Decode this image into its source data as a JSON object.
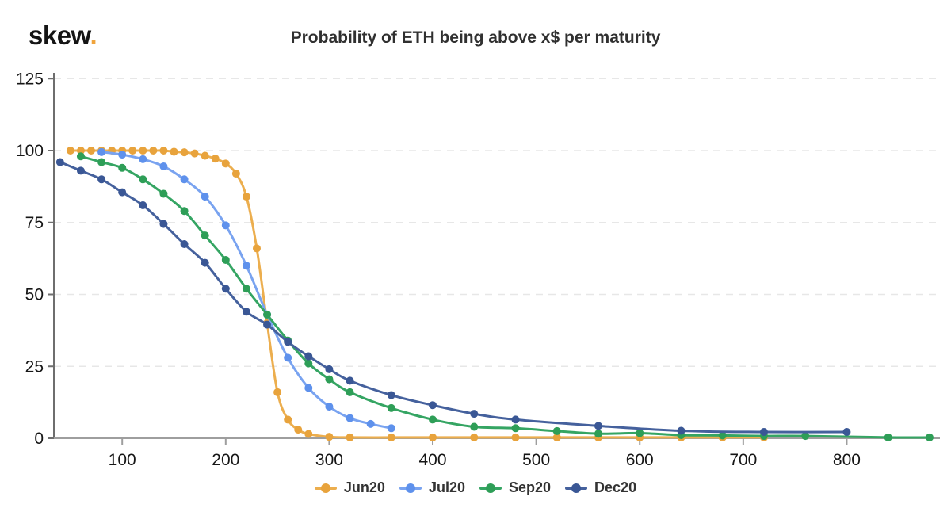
{
  "header": {
    "logo_text": "skew",
    "logo_dot": ".",
    "title": "Probability of ETH being above x$ per maturity"
  },
  "colors": {
    "background": "#ffffff",
    "title_text": "#303030",
    "tick_text": "#161616",
    "grid_line": "#e7e7e7",
    "x_axis_line": "#9e9e9e",
    "y_axis_line": "#6e6e6e",
    "logo_dot_accent": "#F0A43C"
  },
  "chart_data": {
    "type": "line",
    "title": "Probability of ETH being above x$ per maturity",
    "xlabel": "",
    "ylabel": "",
    "grid": "horizontal-dashed",
    "legend_position": "bottom-center",
    "x_axis": {
      "min": 34,
      "max": 890,
      "ticks": [
        100,
        200,
        300,
        400,
        500,
        600,
        700,
        800
      ]
    },
    "y_axis": {
      "min": 0,
      "max": 127,
      "ticks": [
        0,
        25,
        50,
        75,
        100,
        125
      ]
    },
    "series": [
      {
        "name": "Jun20",
        "dot_color": "#E8A33C",
        "line_color": "#ECAE4E",
        "points": [
          [
            50,
            100
          ],
          [
            60,
            100
          ],
          [
            70,
            100
          ],
          [
            80,
            100
          ],
          [
            90,
            100
          ],
          [
            100,
            100
          ],
          [
            110,
            100
          ],
          [
            120,
            100
          ],
          [
            130,
            100
          ],
          [
            140,
            100
          ],
          [
            150,
            99.6
          ],
          [
            160,
            99.4
          ],
          [
            170,
            99
          ],
          [
            180,
            98.2
          ],
          [
            190,
            97.2
          ],
          [
            200,
            95.5
          ],
          [
            210,
            92
          ],
          [
            220,
            84
          ],
          [
            230,
            66
          ],
          [
            240,
            40
          ],
          [
            250,
            16
          ],
          [
            260,
            6.5
          ],
          [
            270,
            3
          ],
          [
            280,
            1.5
          ],
          [
            300,
            0.5
          ],
          [
            320,
            0.3
          ],
          [
            360,
            0.3
          ],
          [
            400,
            0.3
          ],
          [
            440,
            0.3
          ],
          [
            480,
            0.3
          ],
          [
            520,
            0.3
          ],
          [
            560,
            0.3
          ],
          [
            600,
            0.3
          ],
          [
            640,
            0.3
          ],
          [
            680,
            0.3
          ],
          [
            720,
            0.3
          ]
        ]
      },
      {
        "name": "Jul20",
        "dot_color": "#5E91EC",
        "line_color": "#79A3F0",
        "points": [
          [
            80,
            99.5
          ],
          [
            100,
            98.6
          ],
          [
            120,
            97
          ],
          [
            140,
            94.5
          ],
          [
            160,
            90
          ],
          [
            180,
            84
          ],
          [
            200,
            74
          ],
          [
            220,
            60
          ],
          [
            240,
            43
          ],
          [
            260,
            28
          ],
          [
            280,
            17.5
          ],
          [
            300,
            11
          ],
          [
            320,
            7
          ],
          [
            340,
            5
          ],
          [
            360,
            3.5
          ]
        ]
      },
      {
        "name": "Sep20",
        "dot_color": "#2E9E57",
        "line_color": "#35A563",
        "points": [
          [
            60,
            98
          ],
          [
            80,
            96
          ],
          [
            100,
            94
          ],
          [
            120,
            90
          ],
          [
            140,
            85
          ],
          [
            160,
            79
          ],
          [
            180,
            70.5
          ],
          [
            200,
            62
          ],
          [
            220,
            52
          ],
          [
            240,
            43
          ],
          [
            260,
            34
          ],
          [
            280,
            26
          ],
          [
            300,
            20.5
          ],
          [
            320,
            16
          ],
          [
            360,
            10.5
          ],
          [
            400,
            6.5
          ],
          [
            440,
            4
          ],
          [
            480,
            3.5
          ],
          [
            520,
            2.5
          ],
          [
            560,
            1.6
          ],
          [
            600,
            1.8
          ],
          [
            640,
            1.1
          ],
          [
            680,
            1
          ],
          [
            720,
            0.8
          ],
          [
            760,
            0.8
          ],
          [
            840,
            0.3
          ],
          [
            880,
            0.3
          ]
        ]
      },
      {
        "name": "Dec20",
        "dot_color": "#3A5795",
        "line_color": "#45619D",
        "points": [
          [
            40,
            96
          ],
          [
            60,
            93
          ],
          [
            80,
            90
          ],
          [
            100,
            85.5
          ],
          [
            120,
            81
          ],
          [
            140,
            74.5
          ],
          [
            160,
            67.5
          ],
          [
            180,
            61
          ],
          [
            200,
            52
          ],
          [
            220,
            44
          ],
          [
            240,
            39.5
          ],
          [
            260,
            33.5
          ],
          [
            280,
            28.5
          ],
          [
            300,
            24
          ],
          [
            320,
            20
          ],
          [
            360,
            15
          ],
          [
            400,
            11.5
          ],
          [
            440,
            8.5
          ],
          [
            480,
            6.5
          ],
          [
            560,
            4.3
          ],
          [
            640,
            2.6
          ],
          [
            720,
            2.2
          ],
          [
            800,
            2.2
          ]
        ]
      }
    ]
  }
}
